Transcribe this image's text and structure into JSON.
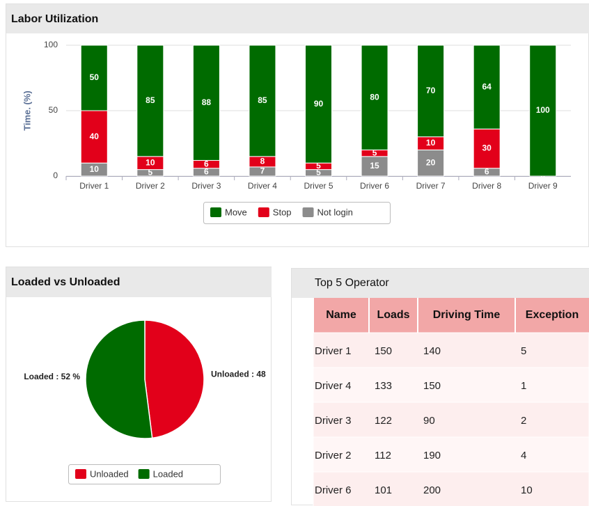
{
  "chart_data": [
    {
      "type": "stacked_bar",
      "title": "Labor Utilization",
      "y_label": "Time. (%)",
      "categories": [
        "Driver 1",
        "Driver 2",
        "Driver 3",
        "Driver 4",
        "Driver 5",
        "Driver 6",
        "Driver 7",
        "Driver 8",
        "Driver 9"
      ],
      "series": [
        {
          "name": "Move",
          "color": "#006b00",
          "values": [
            50,
            85,
            88,
            85,
            90,
            80,
            70,
            64,
            100
          ]
        },
        {
          "name": "Stop",
          "color": "#e2001a",
          "values": [
            40,
            10,
            6,
            8,
            5,
            5,
            10,
            30,
            0
          ]
        },
        {
          "name": "Not login",
          "color": "#8c8c8c",
          "values": [
            10,
            5,
            6,
            7,
            5,
            15,
            20,
            6,
            0
          ]
        }
      ],
      "ylim": [
        0,
        100
      ],
      "yticks": [
        0,
        50,
        100
      ],
      "grid": true,
      "legend": "bottom"
    },
    {
      "type": "pie",
      "title": "Loaded vs Unloaded",
      "categories": [
        "Unloaded",
        "Loaded"
      ],
      "values": [
        48,
        52
      ],
      "value_labels": [
        "Unloaded : 48",
        "Loaded : 52 %"
      ],
      "colors": [
        "#e2001a",
        "#006b00"
      ],
      "legend": "bottom"
    }
  ],
  "table": {
    "title": "Top 5 Operator",
    "columns": [
      "Name",
      "Loads",
      "Driving Time",
      "Exception"
    ],
    "rows": [
      [
        "Driver 1",
        150,
        140,
        5
      ],
      [
        "Driver 4",
        133,
        150,
        1
      ],
      [
        "Driver 3",
        122,
        90,
        2
      ],
      [
        "Driver 2",
        112,
        190,
        4
      ],
      [
        "Driver 6",
        101,
        200,
        10
      ]
    ]
  }
}
